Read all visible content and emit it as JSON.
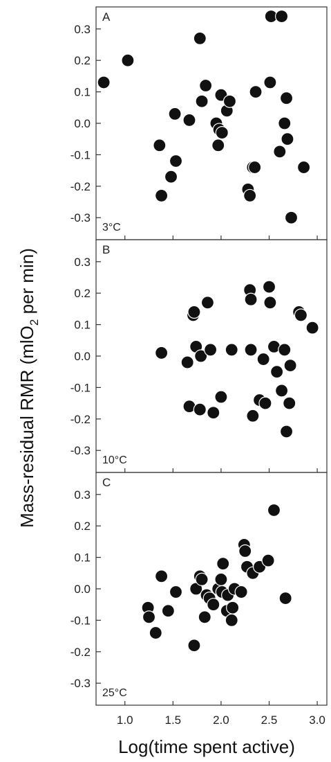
{
  "chart_data": {
    "type": "scatter",
    "xlabel": "Log(time spent active)",
    "ylabel_parts": [
      "Mass-residual RMR (mlO",
      "2",
      " per min)"
    ],
    "xlim": [
      0.7,
      3.1
    ],
    "ylim": [
      -0.37,
      0.37
    ],
    "xticks": [
      "1.0",
      "1.5",
      "2.0",
      "2.5",
      "3.0"
    ],
    "yticks": [
      "0.3",
      "0.2",
      "0.1",
      "0.0",
      "-0.1",
      "-0.2",
      "-0.3"
    ],
    "panels": [
      {
        "label": "A",
        "temperature": "3°C",
        "points": [
          [
            0.78,
            0.13
          ],
          [
            1.03,
            0.2
          ],
          [
            1.36,
            -0.07
          ],
          [
            1.38,
            -0.23
          ],
          [
            1.48,
            -0.17
          ],
          [
            1.52,
            0.03
          ],
          [
            1.53,
            -0.12
          ],
          [
            1.67,
            0.01
          ],
          [
            1.78,
            0.27
          ],
          [
            1.8,
            0.07
          ],
          [
            1.84,
            0.12
          ],
          [
            1.95,
            0.0
          ],
          [
            1.97,
            -0.07
          ],
          [
            1.98,
            -0.02
          ],
          [
            2.0,
            0.09
          ],
          [
            2.01,
            -0.03
          ],
          [
            2.06,
            0.04
          ],
          [
            2.09,
            0.07
          ],
          [
            2.28,
            -0.21
          ],
          [
            2.3,
            -0.23
          ],
          [
            2.33,
            -0.14
          ],
          [
            2.35,
            -0.14
          ],
          [
            2.36,
            0.1
          ],
          [
            2.51,
            0.13
          ],
          [
            2.52,
            0.34
          ],
          [
            2.63,
            0.34
          ],
          [
            2.61,
            -0.09
          ],
          [
            2.66,
            0.0
          ],
          [
            2.68,
            0.08
          ],
          [
            2.69,
            -0.05
          ],
          [
            2.73,
            -0.3
          ],
          [
            2.86,
            -0.14
          ]
        ]
      },
      {
        "label": "B",
        "temperature": "10°C",
        "points": [
          [
            1.38,
            0.01
          ],
          [
            1.65,
            -0.02
          ],
          [
            1.67,
            -0.16
          ],
          [
            1.71,
            0.13
          ],
          [
            1.72,
            0.14
          ],
          [
            1.74,
            0.03
          ],
          [
            1.78,
            -0.17
          ],
          [
            1.79,
            0.0
          ],
          [
            1.86,
            0.17
          ],
          [
            1.89,
            0.02
          ],
          [
            1.92,
            -0.18
          ],
          [
            2.0,
            -0.13
          ],
          [
            2.11,
            0.02
          ],
          [
            2.3,
            0.21
          ],
          [
            2.31,
            0.18
          ],
          [
            2.31,
            0.02
          ],
          [
            2.33,
            -0.19
          ],
          [
            2.4,
            -0.14
          ],
          [
            2.44,
            -0.01
          ],
          [
            2.46,
            -0.15
          ],
          [
            2.5,
            0.22
          ],
          [
            2.51,
            0.17
          ],
          [
            2.55,
            0.03
          ],
          [
            2.58,
            -0.05
          ],
          [
            2.63,
            -0.11
          ],
          [
            2.66,
            0.02
          ],
          [
            2.68,
            -0.24
          ],
          [
            2.71,
            -0.15
          ],
          [
            2.72,
            -0.03
          ],
          [
            2.81,
            0.14
          ],
          [
            2.83,
            0.13
          ],
          [
            2.95,
            0.09
          ]
        ]
      },
      {
        "label": "C",
        "temperature": "25°C",
        "points": [
          [
            1.24,
            -0.06
          ],
          [
            1.25,
            -0.09
          ],
          [
            1.32,
            -0.14
          ],
          [
            1.38,
            0.04
          ],
          [
            1.45,
            -0.07
          ],
          [
            1.53,
            -0.01
          ],
          [
            1.72,
            -0.18
          ],
          [
            1.74,
            0.0
          ],
          [
            1.78,
            0.04
          ],
          [
            1.8,
            0.03
          ],
          [
            1.83,
            -0.09
          ],
          [
            1.85,
            -0.02
          ],
          [
            1.88,
            -0.03
          ],
          [
            1.92,
            -0.05
          ],
          [
            1.97,
            0.0
          ],
          [
            2.0,
            0.03
          ],
          [
            2.01,
            -0.01
          ],
          [
            2.02,
            0.08
          ],
          [
            2.06,
            -0.07
          ],
          [
            2.07,
            -0.02
          ],
          [
            2.11,
            -0.1
          ],
          [
            2.12,
            -0.06
          ],
          [
            2.14,
            0.0
          ],
          [
            2.21,
            -0.01
          ],
          [
            2.24,
            0.14
          ],
          [
            2.25,
            0.12
          ],
          [
            2.27,
            0.07
          ],
          [
            2.33,
            0.05
          ],
          [
            2.4,
            0.07
          ],
          [
            2.49,
            0.09
          ],
          [
            2.55,
            0.25
          ],
          [
            2.67,
            -0.03
          ]
        ]
      }
    ],
    "colors": {
      "marker_fill": "#111111",
      "marker_edge": "#ffffff",
      "frame": "#333333"
    },
    "grid": false,
    "legend": "none"
  }
}
